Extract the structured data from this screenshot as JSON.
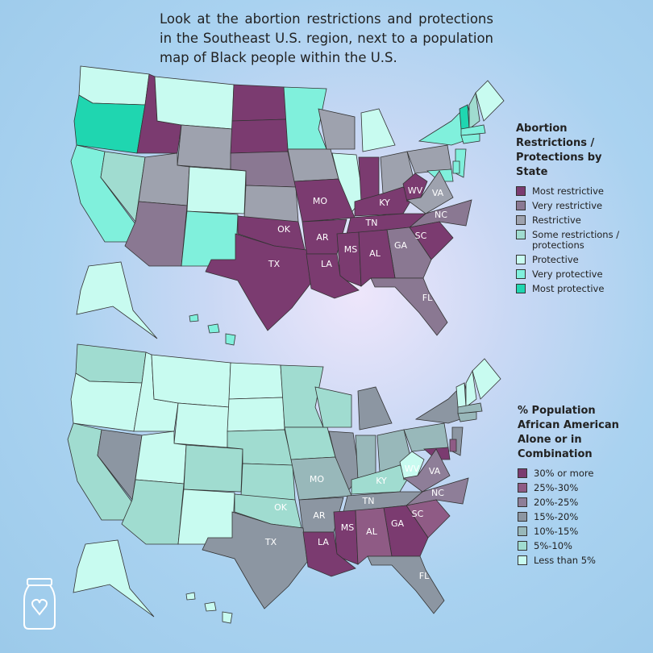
{
  "title": "Look at the abortion restrictions and protections in the Southeast U.S. region, next to a population map of Black people within the U.S.",
  "maps": [
    {
      "legend_title": "Abortion Restrictions / Protections by State",
      "legend": [
        {
          "label": "Most restrictive",
          "color": "#7b3b70"
        },
        {
          "label": "Very restrictive",
          "color": "#8a7892"
        },
        {
          "label": "Restrictive",
          "color": "#9ea2ae"
        },
        {
          "label": "Some restrictions / protections",
          "color": "#a0dcd0"
        },
        {
          "label": "Protective",
          "color": "#c8fbf0"
        },
        {
          "label": "Very protective",
          "color": "#80f0dc"
        },
        {
          "label": "Most protective",
          "color": "#1fd6b0"
        }
      ],
      "states": [
        {
          "label": "MO",
          "category": 0
        },
        {
          "label": "KY",
          "category": 0
        },
        {
          "label": "WV",
          "category": 0
        },
        {
          "label": "VA",
          "category": 2
        },
        {
          "label": "NC",
          "category": 1
        },
        {
          "label": "TN",
          "category": 0
        },
        {
          "label": "OK",
          "category": 0
        },
        {
          "label": "AR",
          "category": 0
        },
        {
          "label": "SC",
          "category": 0
        },
        {
          "label": "GA",
          "category": 1
        },
        {
          "label": "MS",
          "category": 0
        },
        {
          "label": "AL",
          "category": 0
        },
        {
          "label": "TX",
          "category": 0
        },
        {
          "label": "LA",
          "category": 0
        },
        {
          "label": "FL",
          "category": 1
        }
      ]
    },
    {
      "legend_title": "% Population African American Alone or in Combination",
      "legend": [
        {
          "label": "30% or more",
          "color": "#7b3b70"
        },
        {
          "label": "25%-30%",
          "color": "#8f5b85"
        },
        {
          "label": "20%-25%",
          "color": "#8e7e98"
        },
        {
          "label": "15%-20%",
          "color": "#8c96a2"
        },
        {
          "label": "10%-15%",
          "color": "#98b8ba"
        },
        {
          "label": "5%-10%",
          "color": "#a0dcd0"
        },
        {
          "label": "Less than 5%",
          "color": "#c8fbf0"
        }
      ],
      "states": [
        {
          "label": "MO",
          "category": 4
        },
        {
          "label": "KY",
          "category": 5
        },
        {
          "label": "WV",
          "category": 6
        },
        {
          "label": "VA",
          "category": 2
        },
        {
          "label": "NC",
          "category": 2
        },
        {
          "label": "TN",
          "category": 3
        },
        {
          "label": "OK",
          "category": 5
        },
        {
          "label": "AR",
          "category": 3
        },
        {
          "label": "SC",
          "category": 1
        },
        {
          "label": "GA",
          "category": 0
        },
        {
          "label": "MS",
          "category": 0
        },
        {
          "label": "AL",
          "category": 1
        },
        {
          "label": "TX",
          "category": 3
        },
        {
          "label": "LA",
          "category": 0
        },
        {
          "label": "FL",
          "category": 3
        }
      ]
    }
  ]
}
